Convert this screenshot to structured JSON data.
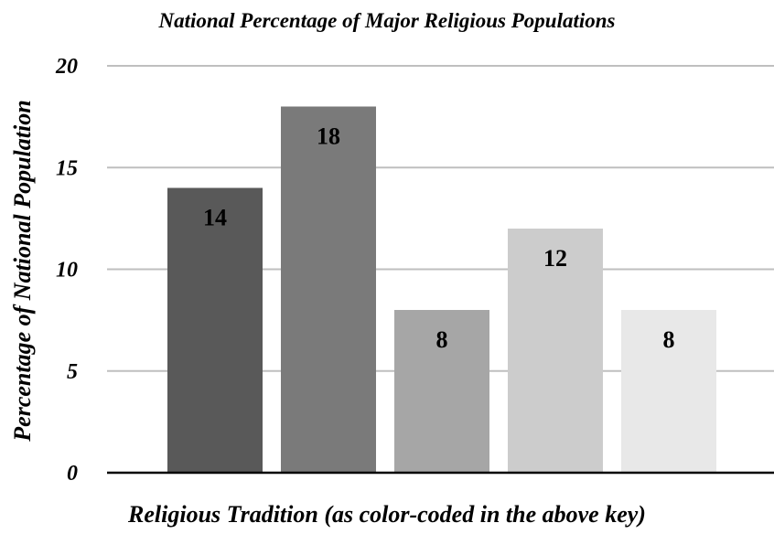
{
  "chart_data": {
    "type": "bar",
    "title": "National Percentage of Major Religious Populations",
    "xlabel": "Religious Tradition (as color-coded in the above key)",
    "ylabel": "Percentage of National Population",
    "ylim": [
      0,
      20
    ],
    "yticks": [
      0,
      5,
      10,
      15,
      20
    ],
    "grid": true,
    "legend": "none",
    "values": [
      14,
      18,
      8,
      12,
      8
    ],
    "colors": [
      "#595959",
      "#7a7a7a",
      "#a6a6a6",
      "#cccccc",
      "#e8e8e8"
    ],
    "data_labels": [
      "14",
      "18",
      "8",
      "12",
      "8"
    ]
  }
}
